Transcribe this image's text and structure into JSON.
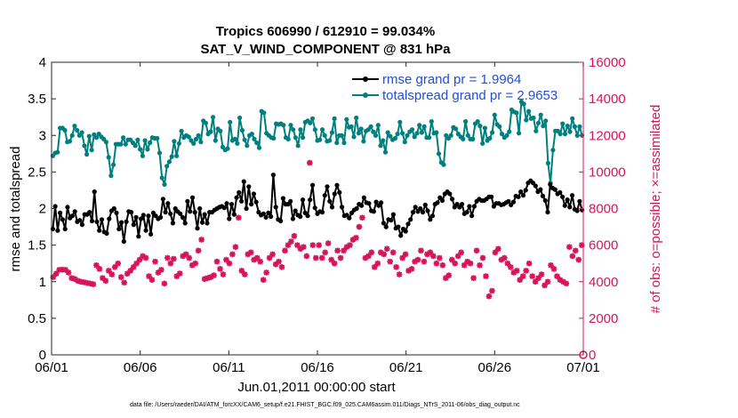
{
  "chart_data": {
    "type": "line",
    "title": "Tropics 606990 / 612910 = 99.034%",
    "subtitle": "SAT_V_WIND_COMPONENT @ 831 hPa",
    "xlabel": "Jun.01,2011 00:00:00 start",
    "ylabel": "rmse and totalspread",
    "y2label": "# of obs: o=possible; ×=assimilated",
    "xlim": [
      0,
      30
    ],
    "ylim": [
      0,
      4
    ],
    "y2lim": [
      0,
      16000
    ],
    "x_tick_labels": [
      "06/01",
      "06/06",
      "06/11",
      "06/16",
      "06/21",
      "06/26",
      "07/01"
    ],
    "y_tick_labels": [
      "0",
      "0.5",
      "1",
      "1.5",
      "2",
      "2.5",
      "3",
      "3.5",
      "4"
    ],
    "y2_tick_labels": [
      "0",
      "2000",
      "4000",
      "6000",
      "8000",
      "10000",
      "12000",
      "14000",
      "16000"
    ],
    "legend": [
      "rmse grand pr = 1.9964",
      "totalspread grand pr = 2.9653"
    ],
    "footnote": "data file: /Users/raeder/DAI/ATM_forcXX/CAM6_setup/f.e21.FHIST_BGC.f09_025.CAM6assim.011/Diags_NTrS_2011-06/obs_diag_output.nc",
    "colors": {
      "rmse": "#000000",
      "spread": "#007f7f",
      "obs": "#d6145a",
      "axis_right": "#d6145a"
    },
    "series": [
      {
        "name": "rmse",
        "values": [
          1.72,
          2.03,
          1.7,
          1.94,
          1.85,
          1.72,
          2.02,
          1.87,
          1.9,
          1.96,
          1.82,
          1.84,
          1.78,
          1.92,
          1.92,
          1.95,
          1.83,
          2.23,
          1.82,
          1.7,
          1.85,
          1.68,
          1.66,
          1.86,
          1.97,
          2.0,
          1.94,
          1.72,
          1.81,
          1.55,
          1.82,
          1.96,
          1.95,
          1.78,
          1.88,
          1.62,
          1.86,
          1.91,
          1.7,
          1.9,
          1.65,
          1.94,
          1.9,
          1.86,
          1.88,
          2.13,
          1.95,
          2.07,
          1.93,
          1.8,
          2.0,
          1.96,
          1.93,
          1.88,
          1.8,
          2.1,
          1.96,
          2.15,
          1.95,
          1.73,
          2.0,
          1.81,
          1.92,
          1.8,
          1.95,
          1.95,
          1.98,
          2.0,
          2.02,
          2.03,
          2.01,
          2.07,
          1.86,
          2.06,
          1.92,
          2.15,
          2.22,
          2.1,
          2.37,
          2.0,
          2.3,
          2.06,
          2.2,
          2.09,
          1.95,
          1.91,
          1.93,
          1.88,
          1.94,
          1.89,
          2.46,
          2.02,
          1.85,
          1.83,
          2.14,
          2.06,
          2.06,
          2.1,
          1.86,
          1.97,
          1.91,
          1.89,
          2.12,
          1.94,
          1.9,
          2.12,
          2.32,
          2.01,
          1.93,
          1.96,
          1.95,
          2.18,
          2.3,
          2.1,
          2.02,
          2.2,
          2.32,
          2.22,
          2.02,
          1.9,
          1.91,
          1.87,
          1.94,
          1.98,
          2.0,
          2.06,
          2.04,
          2.15,
          2.08,
          2.07,
          1.97,
          1.96,
          2.09,
          2.04,
          2.08,
          1.8,
          1.75,
          1.85,
          1.84,
          1.92,
          1.73,
          1.75,
          1.63,
          1.72,
          1.69,
          1.79,
          1.85,
          1.95,
          2.02,
          1.96,
          2.0,
          1.95,
          2.05,
          1.97,
          1.85,
          1.9,
          2.06,
          2.08,
          2.15,
          2.11,
          2.2,
          2.23,
          2.2,
          2.13,
          2.02,
          2.06,
          2.02,
          2.06,
          1.93,
          1.95,
          2.03,
          1.9,
          2.03,
          2.1,
          2.13,
          2.11,
          2.11,
          2.13,
          2.16,
          2.16,
          2.03,
          2.07,
          2.07,
          2.05,
          2.06,
          2.08,
          2.1,
          2.05,
          2.09,
          2.17,
          2.16,
          2.23,
          2.18,
          2.25,
          2.35,
          2.38,
          2.35,
          2.31,
          2.23,
          2.26,
          2.17,
          2.11,
          1.95,
          2.33,
          2.28,
          2.26,
          2.2,
          2.22,
          2.16,
          2.04,
          2.12,
          2.02,
          2.18,
          1.99,
          1.97,
          2.1,
          1.98
        ]
      },
      {
        "name": "totalspread",
        "values": [
          2.72,
          2.76,
          2.77,
          3.1,
          3.1,
          3.07,
          2.91,
          2.92,
          3.0,
          3.13,
          3.07,
          3.0,
          3.04,
          2.86,
          2.74,
          2.99,
          2.8,
          3.01,
          2.97,
          3.02,
          2.98,
          2.95,
          2.91,
          2.7,
          2.45,
          2.6,
          2.88,
          2.88,
          2.88,
          2.97,
          2.88,
          2.94,
          2.94,
          2.9,
          2.86,
          2.94,
          2.81,
          2.72,
          2.93,
          2.81,
          2.9,
          2.97,
          2.96,
          2.96,
          2.76,
          2.42,
          2.33,
          2.58,
          2.64,
          2.71,
          2.92,
          2.72,
          2.89,
          3.06,
          2.97,
          3.0,
          2.98,
          2.93,
          2.89,
          2.95,
          3.0,
          2.91,
          3.2,
          3.17,
          3.02,
          3.05,
          3.25,
          2.93,
          3.09,
          3.06,
          2.84,
          2.8,
          2.82,
          3.18,
          2.93,
          2.95,
          2.89,
          3.24,
          3.07,
          2.94,
          2.86,
          3.0,
          3.02,
          2.95,
          2.9,
          2.83,
          3.33,
          3.31,
          3.03,
          3.0,
          2.97,
          2.96,
          3.16,
          3.15,
          3.16,
          3.14,
          2.97,
          2.95,
          3.14,
          3.08,
          2.97,
          2.86,
          3.08,
          2.97,
          3.18,
          3.2,
          3.17,
          3.23,
          3.08,
          2.93,
          2.94,
          3.08,
          3.0,
          2.92,
          2.93,
          3.04,
          3.23,
          2.9,
          3.0,
          3.0,
          2.9,
          3.22,
          3.11,
          3.12,
          2.98,
          3.24,
          3.03,
          3.09,
          2.92,
          3.06,
          3.08,
          3.12,
          3.05,
          3.0,
          3.14,
          2.86,
          2.93,
          2.77,
          3.04,
          2.99,
          2.94,
          2.96,
          3.02,
          3.18,
          3.03,
          2.91,
          3.0,
          3.05,
          3.08,
          2.98,
          3.03,
          3.14,
          3.04,
          3.12,
          2.97,
          2.97,
          3.19,
          3.03,
          3.04,
          2.75,
          2.63,
          2.6,
          3.0,
          2.96,
          3.0,
          3.11,
          3.09,
          3.02,
          2.98,
          2.95,
          3.19,
          3.0,
          2.95,
          2.95,
          3.16,
          3.19,
          3.13,
          2.89,
          3.1,
          2.93,
          2.96,
          3.04,
          3.28,
          3.15,
          3.12,
          3.02,
          2.97,
          3.0,
          3.05,
          3.35,
          3.32,
          3.31,
          3.03,
          3.46,
          3.43,
          3.21,
          3.33,
          3.23,
          3.24,
          3.06,
          3.17,
          3.28,
          3.13,
          3.2,
          2.62,
          2.35,
          2.8,
          3.06,
          3.06,
          3.02,
          3.16,
          3.02,
          3.13,
          3.05,
          3.23,
          3.12,
          3.0,
          3.12,
          3.0
        ]
      },
      {
        "name": "obs_assimilated",
        "values": [
          4250,
          4440,
          4650,
          4660,
          4650,
          4500,
          4200,
          4150,
          4050,
          4000,
          3970,
          3930,
          3900,
          3860,
          4900,
          4700,
          4200,
          4050,
          4600,
          4400,
          4800,
          5000,
          4250,
          3950,
          4440,
          4600,
          4800,
          5000,
          5200,
          5400,
          5300,
          4300,
          4100,
          5100,
          4500,
          4650,
          3900,
          5300,
          5000,
          5250,
          4300,
          4450,
          5400,
          5500,
          5300,
          4900,
          5000,
          5700,
          6300,
          4150,
          4200,
          4250,
          4350,
          5100,
          4700,
          4400,
          5200,
          5000,
          5500,
          5900,
          7500,
          4600,
          4400,
          5500,
          5600,
          5200,
          5300,
          5100,
          4100,
          4500,
          5300,
          5500,
          4950,
          5100,
          4800,
          5700,
          6000,
          6200,
          6500,
          6000,
          5800,
          5900,
          5400,
          10500,
          6000,
          5300,
          6000,
          5300,
          5600,
          6100,
          5200,
          5000,
          5700,
          5300,
          5700,
          5900,
          6000,
          6300,
          6400,
          7000,
          7500,
          5300,
          5400,
          5600,
          4800,
          5000,
          5600,
          5500,
          5800,
          5100,
          5600,
          4800,
          4400,
          5300,
          5500,
          4600,
          4700,
          5100,
          5200,
          5700,
          5100,
          5500,
          5600,
          5400,
          5000,
          5300,
          4900,
          4200,
          4350,
          5200,
          5000,
          5400,
          5600,
          4900,
          5100,
          5000,
          4200,
          5700,
          4900,
          5300,
          4300,
          3200,
          3500,
          5600,
          5800,
          5200,
          5300,
          5000,
          4800,
          4500,
          4600,
          4100,
          4300,
          4600,
          5000,
          4300,
          4000,
          4200,
          4400,
          3800,
          4000,
          4900,
          4700,
          4300,
          4100,
          4000,
          3900,
          5900,
          5400,
          5700,
          5200,
          6000
        ]
      }
    ]
  }
}
